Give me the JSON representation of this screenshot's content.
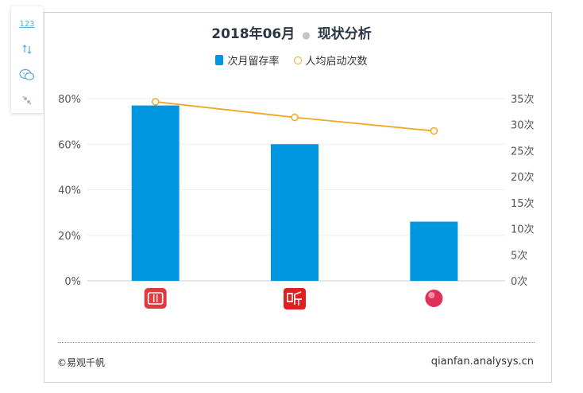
{
  "title": {
    "main": "2018年06月",
    "sub": "现状分析"
  },
  "legend": {
    "bar_label": "次月留存率",
    "line_label": "人均启动次数"
  },
  "toolbar": {
    "data_view_label": "123"
  },
  "footer": {
    "left": "©易观千帆",
    "right": "qianfan.analysys.cn"
  },
  "colors": {
    "bar": "#0096e0",
    "line": "#f5a623",
    "icon1": "#e03a3e",
    "icon2": "#e02020",
    "icon3": "#e0305a"
  },
  "chart_data": {
    "type": "bar",
    "categories": [
      "app-1",
      "app-2",
      "app-3"
    ],
    "series": [
      {
        "name": "次月留存率",
        "type": "bar",
        "axis": "left",
        "values": [
          77,
          60,
          26
        ]
      },
      {
        "name": "人均启动次数",
        "type": "line",
        "axis": "right",
        "values": [
          34.4,
          31.4,
          28.8
        ]
      }
    ],
    "y_left": {
      "ticks": [
        "0%",
        "20%",
        "40%",
        "60%",
        "80%"
      ],
      "range": [
        0,
        80
      ]
    },
    "y_right": {
      "ticks": [
        "0次",
        "5次",
        "10次",
        "15次",
        "20次",
        "25次",
        "30次",
        "35次"
      ],
      "range": [
        0,
        35
      ]
    },
    "grid": true
  }
}
